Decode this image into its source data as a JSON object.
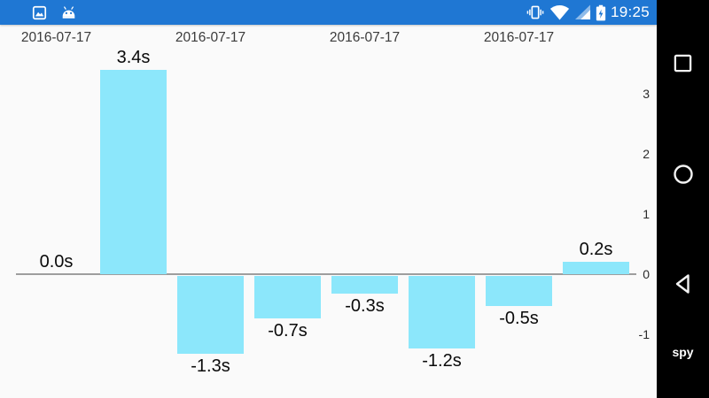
{
  "status_bar": {
    "time": "19:25",
    "bg_color": "#1f77d3",
    "icons_left": [
      "screenshot-icon",
      "android-icon"
    ],
    "icons_right": [
      "vibrate-icon",
      "wifi-icon",
      "cell-signal-icon",
      "battery-charging-icon"
    ]
  },
  "nav_bar": {
    "bg_color": "#000000",
    "buttons": [
      "recents",
      "home",
      "back"
    ],
    "watermark": "spy"
  },
  "chart_data": {
    "type": "bar",
    "title": "",
    "categories": [
      "2016-07-17",
      "2016-07-17",
      "2016-07-17",
      "2016-07-17",
      "2016-07-17",
      "2016-07-17",
      "2016-07-17",
      "2016-07-17"
    ],
    "values": [
      0.0,
      3.4,
      -1.3,
      -0.7,
      -0.3,
      -1.2,
      -0.5,
      0.2
    ],
    "value_labels": [
      "0.0s",
      "3.4s",
      "-1.3s",
      "-0.7s",
      "-0.3s",
      "-1.2s",
      "-0.5s",
      "0.2s"
    ],
    "x_tick_labels_shown": [
      "2016-07-17",
      "2016-07-17",
      "2016-07-17",
      "2016-07-17"
    ],
    "x_label_indices": [
      0,
      2,
      4,
      6
    ],
    "x_axis_position": "top",
    "y_axis_position": "right",
    "y_ticks": [
      3,
      2,
      1,
      0,
      -1
    ],
    "ylim": [
      -1.6,
      3.7
    ],
    "grid": "off",
    "legend": "none",
    "bar_color": "#8ce7fb",
    "axis_line_color": "#9e9e9e"
  }
}
